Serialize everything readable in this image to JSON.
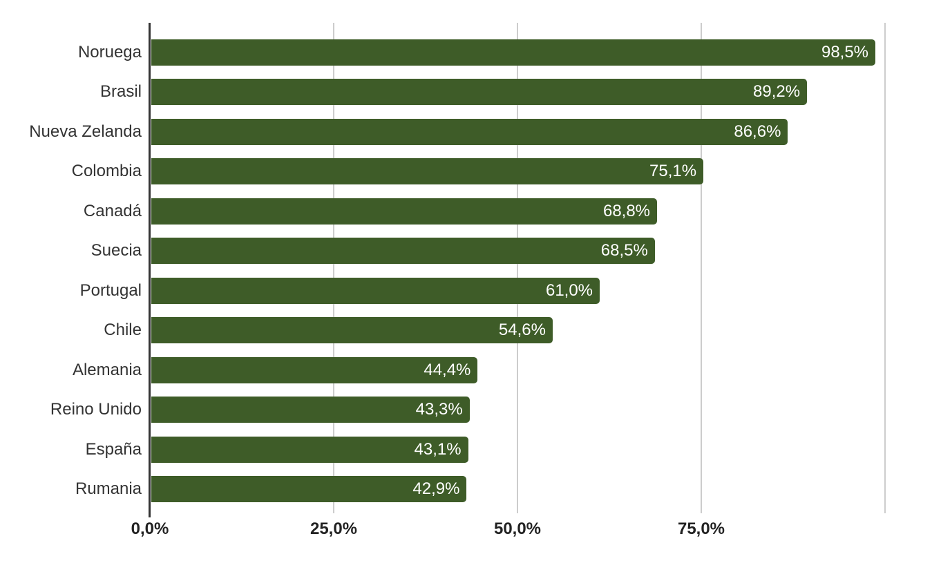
{
  "chart_data": {
    "type": "bar",
    "orientation": "horizontal",
    "title": "",
    "categories": [
      "Noruega",
      "Brasil",
      "Nueva Zelanda",
      "Colombia",
      "Canadá",
      "Suecia",
      "Portugal",
      "Chile",
      "Alemania",
      "Reino Unido",
      "España",
      "Rumania"
    ],
    "values": [
      98.5,
      89.2,
      86.6,
      75.1,
      68.8,
      68.5,
      61.0,
      54.6,
      44.4,
      43.3,
      43.1,
      42.9
    ],
    "value_labels": [
      "98,5%",
      "89,2%",
      "86,6%",
      "75,1%",
      "68,8%",
      "68,5%",
      "61,0%",
      "54,6%",
      "44,4%",
      "43,3%",
      "43,1%",
      "42,9%"
    ],
    "xlabel": "",
    "ylabel": "",
    "xlim": [
      0,
      100
    ],
    "x_ticks": [
      {
        "value": 0,
        "label": "0,0%"
      },
      {
        "value": 25,
        "label": "25,0%"
      },
      {
        "value": 50,
        "label": "50,0%"
      },
      {
        "value": 75,
        "label": "75,0%"
      }
    ],
    "x_gridline_values": [
      25,
      50,
      75,
      100
    ],
    "grid": true,
    "legend": "none",
    "colors": {
      "bar": "#3e5c28",
      "value_label": "#ffffff",
      "category_label": "#333333",
      "axis_line": "#333333",
      "axis_tick_label": "#222222",
      "gridline": "#cccccc",
      "background": "#ffffff"
    }
  }
}
